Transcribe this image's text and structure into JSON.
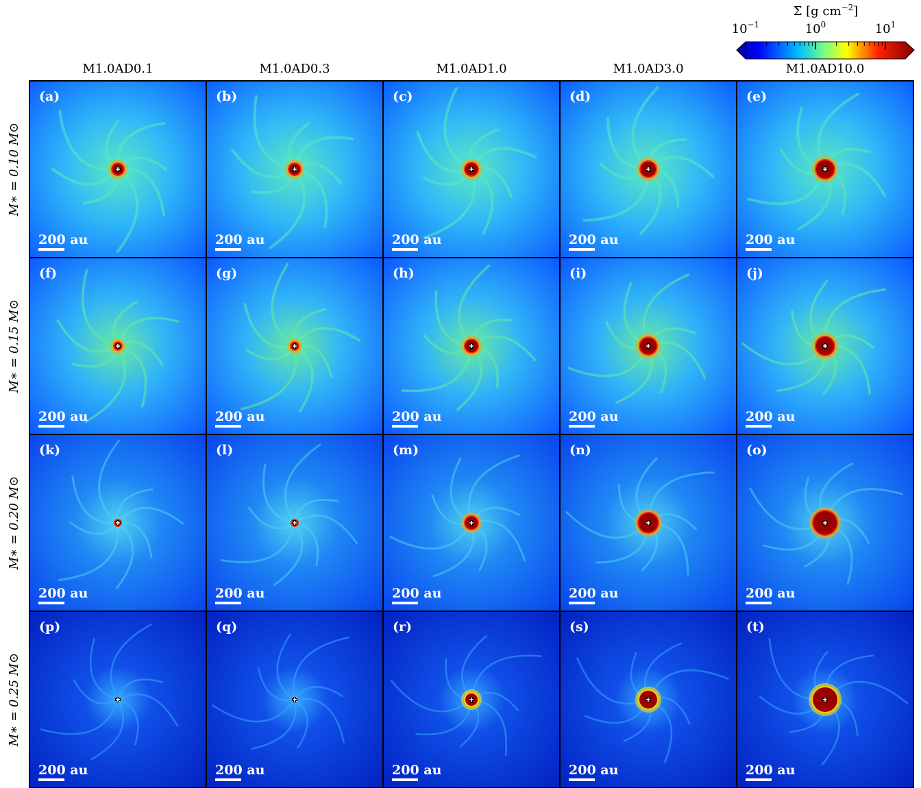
{
  "colorbar": {
    "label": {
      "text": "Σ [g cm",
      "sup": "−2",
      "end": "]"
    },
    "ticks": [
      {
        "base": "10",
        "exp": "−1"
      },
      {
        "base": "10",
        "exp": "0"
      },
      {
        "base": "10",
        "exp": "1"
      }
    ]
  },
  "columns": [
    "M1.0AD0.1",
    "M1.0AD0.3",
    "M1.0AD1.0",
    "M1.0AD3.0",
    "M1.0AD10.0"
  ],
  "rows": [
    "M∗ = 0.10 M⊙",
    "M∗ = 0.15 M⊙",
    "M∗ = 0.20 M⊙",
    "M∗ = 0.25 M⊙"
  ],
  "panels": [
    [
      {
        "label": "(a)",
        "scale_bar": "200 au"
      },
      {
        "label": "(b)",
        "scale_bar": "200 au"
      },
      {
        "label": "(c)",
        "scale_bar": "200 au"
      },
      {
        "label": "(d)",
        "scale_bar": "200 au"
      },
      {
        "label": "(e)",
        "scale_bar": "200 au"
      }
    ],
    [
      {
        "label": "(f)",
        "scale_bar": "200 au"
      },
      {
        "label": "(g)",
        "scale_bar": "200 au"
      },
      {
        "label": "(h)",
        "scale_bar": "200 au"
      },
      {
        "label": "(i)",
        "scale_bar": "200 au"
      },
      {
        "label": "(j)",
        "scale_bar": "200 au"
      }
    ],
    [
      {
        "label": "(k)",
        "scale_bar": "200 au"
      },
      {
        "label": "(l)",
        "scale_bar": "200 au"
      },
      {
        "label": "(m)",
        "scale_bar": "200 au"
      },
      {
        "label": "(n)",
        "scale_bar": "200 au"
      },
      {
        "label": "(o)",
        "scale_bar": "200 au"
      }
    ],
    [
      {
        "label": "(p)",
        "scale_bar": "200 au"
      },
      {
        "label": "(q)",
        "scale_bar": "200 au"
      },
      {
        "label": "(r)",
        "scale_bar": "200 au"
      },
      {
        "label": "(s)",
        "scale_bar": "200 au"
      },
      {
        "label": "(t)",
        "scale_bar": "200 au"
      }
    ]
  ]
}
